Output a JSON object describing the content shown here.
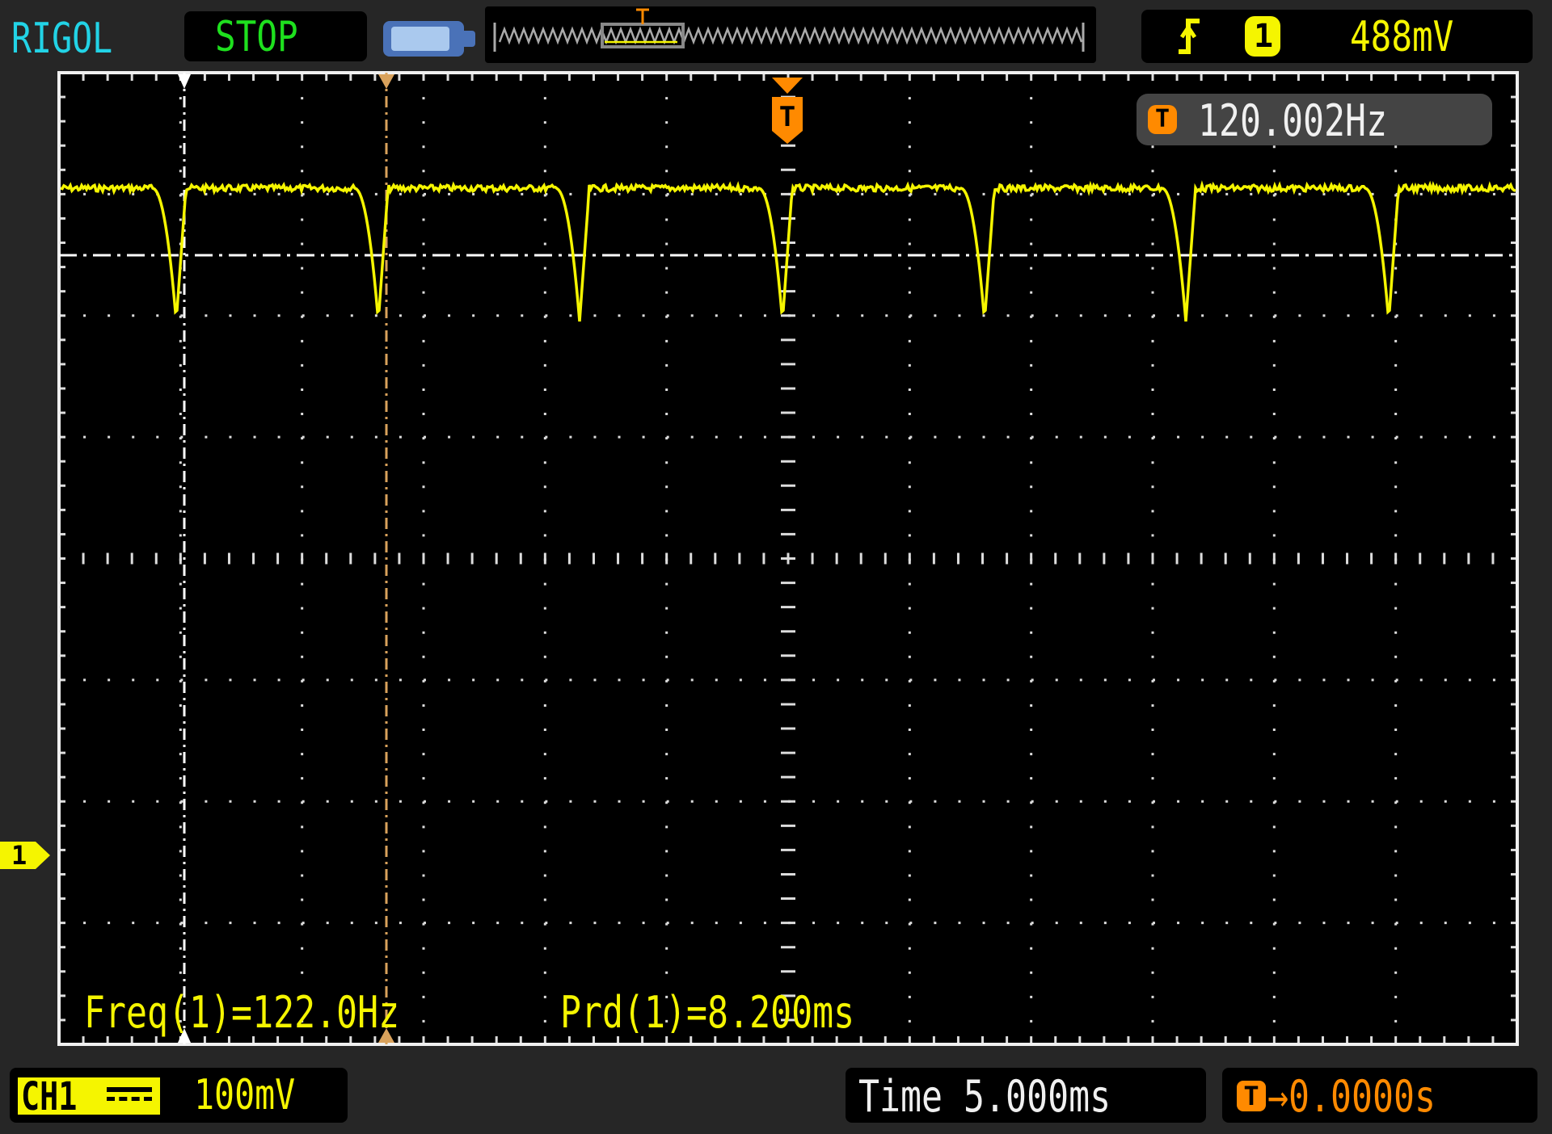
{
  "header": {
    "brand": "RIGOL",
    "run_state": "STOP",
    "trigger": {
      "edge_icon": "rising-edge-icon",
      "source": "1",
      "level": "488mV"
    }
  },
  "display": {
    "trigger_frequency": "120.002Hz",
    "trigger_marker": "T",
    "channel_marker": "1",
    "measurements": {
      "freq": "Freq(1)=122.0Hz",
      "period": "Prd(1)=8.200ms"
    }
  },
  "footer": {
    "channel_label": "CH1",
    "coupling_icon": "dc-coupling-icon",
    "volts_per_div": "100mV",
    "timebase": "Time 5.000ms",
    "trigger_offset_marker": "T",
    "trigger_offset": "→0.0000s"
  },
  "colors": {
    "brand": "#22d3e6",
    "run_state": "#1ee01e",
    "channel1": "#f5f500",
    "trigger": "#ff8a00",
    "cursor_b": "#d9a25c",
    "grid": "#e8e8e8"
  }
}
